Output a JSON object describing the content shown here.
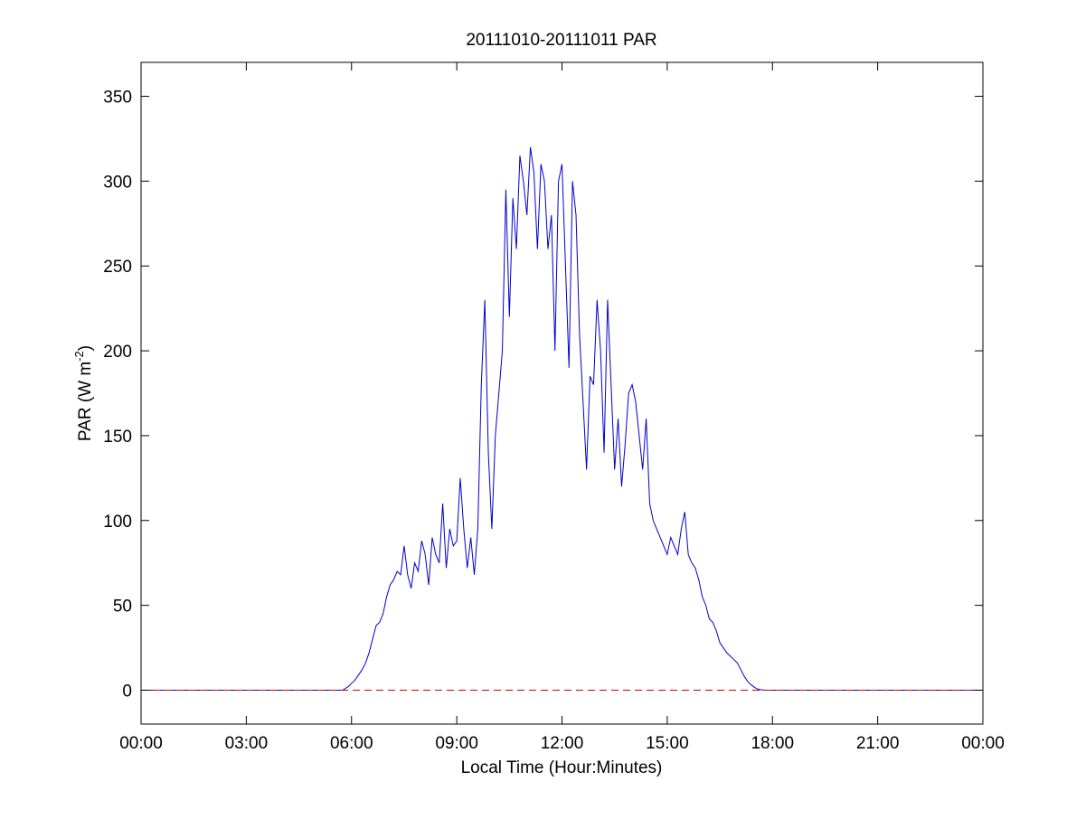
{
  "chart_data": {
    "type": "line",
    "title": "20111010-20111011 PAR",
    "xlabel": "Local Time (Hour:Minutes)",
    "ylabel": {
      "prefix": "PAR (W m",
      "superscript": "-2",
      "suffix": ")"
    },
    "xlim": [
      0,
      24
    ],
    "ylim": [
      -20,
      370
    ],
    "x_ticks": [
      {
        "value": 0,
        "label": "00:00"
      },
      {
        "value": 3,
        "label": "03:00"
      },
      {
        "value": 6,
        "label": "06:00"
      },
      {
        "value": 9,
        "label": "09:00"
      },
      {
        "value": 12,
        "label": "12:00"
      },
      {
        "value": 15,
        "label": "15:00"
      },
      {
        "value": 18,
        "label": "18:00"
      },
      {
        "value": 21,
        "label": "21:00"
      },
      {
        "value": 24,
        "label": "00:00"
      }
    ],
    "y_ticks": [
      {
        "value": 0,
        "label": "0"
      },
      {
        "value": 50,
        "label": "50"
      },
      {
        "value": 100,
        "label": "100"
      },
      {
        "value": 150,
        "label": "150"
      },
      {
        "value": 200,
        "label": "200"
      },
      {
        "value": 250,
        "label": "250"
      },
      {
        "value": 300,
        "label": "300"
      },
      {
        "value": 350,
        "label": "350"
      }
    ],
    "grid": false,
    "legend": "none",
    "series": [
      {
        "style": "solid",
        "color": "#0000cc",
        "x": [
          0,
          5.75,
          5.9,
          6.0,
          6.1,
          6.2,
          6.3,
          6.4,
          6.5,
          6.6,
          6.7,
          6.8,
          6.9,
          7.0,
          7.1,
          7.2,
          7.3,
          7.4,
          7.5,
          7.6,
          7.7,
          7.8,
          7.9,
          8.0,
          8.1,
          8.2,
          8.3,
          8.4,
          8.5,
          8.6,
          8.7,
          8.8,
          8.9,
          9.0,
          9.1,
          9.2,
          9.3,
          9.4,
          9.5,
          9.6,
          9.7,
          9.8,
          9.9,
          10.0,
          10.1,
          10.2,
          10.3,
          10.4,
          10.5,
          10.6,
          10.7,
          10.8,
          10.9,
          11.0,
          11.1,
          11.2,
          11.3,
          11.4,
          11.5,
          11.6,
          11.7,
          11.8,
          11.9,
          12.0,
          12.1,
          12.2,
          12.3,
          12.4,
          12.5,
          12.6,
          12.7,
          12.8,
          12.9,
          13.0,
          13.1,
          13.2,
          13.3,
          13.4,
          13.5,
          13.6,
          13.7,
          13.8,
          13.9,
          14.0,
          14.1,
          14.2,
          14.3,
          14.4,
          14.5,
          14.6,
          14.7,
          14.8,
          14.9,
          15.0,
          15.1,
          15.2,
          15.3,
          15.4,
          15.5,
          15.6,
          15.7,
          15.8,
          15.9,
          16.0,
          16.1,
          16.2,
          16.3,
          16.4,
          16.5,
          16.6,
          16.7,
          16.8,
          16.9,
          17.0,
          17.1,
          17.2,
          17.3,
          17.4,
          17.5,
          17.6,
          17.7,
          17.8,
          24
        ],
        "y": [
          0,
          0,
          2,
          4,
          6,
          9,
          12,
          16,
          22,
          30,
          38,
          40,
          45,
          55,
          62,
          65,
          70,
          68,
          85,
          68,
          60,
          75,
          70,
          88,
          80,
          62,
          90,
          80,
          75,
          110,
          72,
          95,
          85,
          88,
          125,
          95,
          72,
          90,
          68,
          95,
          180,
          230,
          140,
          95,
          150,
          175,
          200,
          295,
          220,
          290,
          260,
          315,
          300,
          280,
          320,
          305,
          260,
          310,
          300,
          260,
          280,
          200,
          300,
          310,
          250,
          190,
          300,
          280,
          210,
          170,
          130,
          185,
          180,
          230,
          200,
          140,
          230,
          180,
          130,
          160,
          120,
          145,
          175,
          180,
          170,
          150,
          130,
          160,
          110,
          100,
          95,
          90,
          85,
          80,
          90,
          85,
          80,
          95,
          105,
          80,
          75,
          72,
          65,
          55,
          50,
          42,
          40,
          35,
          28,
          25,
          22,
          20,
          18,
          16,
          12,
          8,
          5,
          3,
          1.5,
          0.5,
          0.2,
          0,
          0
        ]
      },
      {
        "style": "dashed",
        "color": "#cc0000",
        "x": [
          0,
          24
        ],
        "y": [
          0,
          0
        ]
      }
    ]
  }
}
